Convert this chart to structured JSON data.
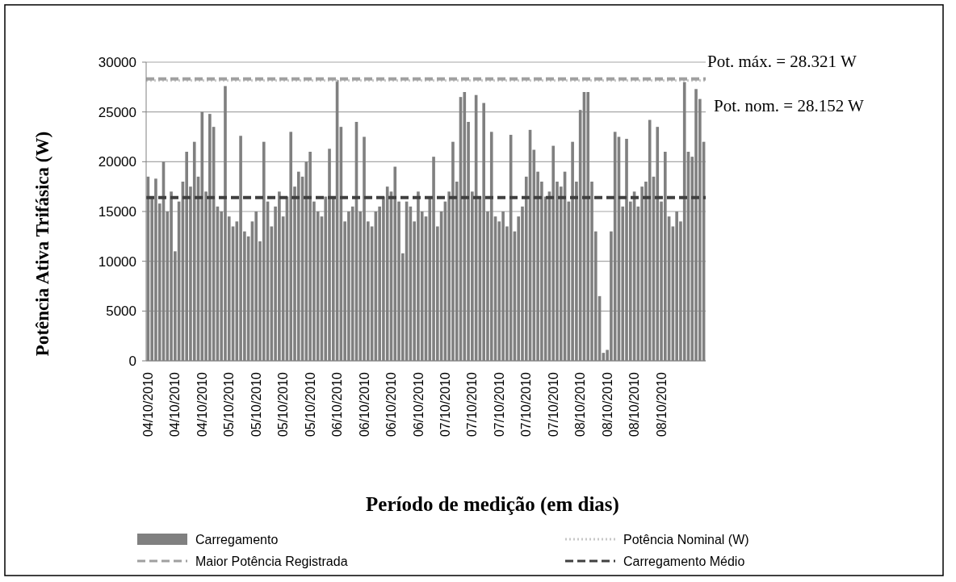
{
  "chart_data": {
    "type": "bar",
    "xlabel": "Período de medição (em dias)",
    "ylabel": "Potência Ativa Trifásica (W)",
    "categories": [
      "04/10/2010",
      null,
      null,
      null,
      null,
      null,
      null,
      "04/10/2010",
      null,
      null,
      null,
      null,
      null,
      null,
      "04/10/2010",
      null,
      null,
      null,
      null,
      null,
      null,
      "05/10/2010",
      null,
      null,
      null,
      null,
      null,
      null,
      "05/10/2010",
      null,
      null,
      null,
      null,
      null,
      null,
      "05/10/2010",
      null,
      null,
      null,
      null,
      null,
      null,
      "05/10/2010",
      null,
      null,
      null,
      null,
      null,
      null,
      "06/10/2010",
      null,
      null,
      null,
      null,
      null,
      null,
      "06/10/2010",
      null,
      null,
      null,
      null,
      null,
      null,
      "06/10/2010",
      null,
      null,
      null,
      null,
      null,
      null,
      "06/10/2010",
      null,
      null,
      null,
      null,
      null,
      null,
      "07/10/2010",
      null,
      null,
      null,
      null,
      null,
      null,
      "07/10/2010",
      null,
      null,
      null,
      null,
      null,
      null,
      "07/10/2010",
      null,
      null,
      null,
      null,
      null,
      null,
      "07/10/2010",
      null,
      null,
      null,
      null,
      null,
      null,
      "07/10/2010",
      null,
      null,
      null,
      null,
      null,
      null,
      "08/10/2010",
      null,
      null,
      null,
      null,
      null,
      null,
      "08/10/2010",
      null,
      null,
      null,
      null,
      null,
      null,
      "08/10/2010",
      null,
      null,
      null,
      null,
      null,
      null,
      "08/10/2010",
      null,
      null,
      null,
      null,
      null,
      null,
      null,
      null,
      null,
      null,
      null
    ],
    "series": [
      {
        "name": "Carregamento",
        "color": "#808080",
        "values": [
          18500,
          16500,
          18300,
          15800,
          20000,
          15000,
          17000,
          11000,
          16000,
          18000,
          21000,
          17500,
          22000,
          18500,
          25000,
          17000,
          24800,
          23500,
          15500,
          15000,
          27600,
          14500,
          13500,
          14000,
          22600,
          13000,
          12500,
          14000,
          15000,
          12000,
          22000,
          16000,
          13500,
          15500,
          17000,
          14500,
          16500,
          23000,
          17500,
          19000,
          18500,
          20000,
          21000,
          16000,
          15000,
          14500,
          16500,
          21300,
          16500,
          28200,
          23500,
          14000,
          15000,
          15500,
          24000,
          15000,
          22500,
          14000,
          13500,
          15000,
          15500,
          16500,
          17500,
          17000,
          19500,
          16000,
          10800,
          16000,
          15500,
          14000,
          17000,
          15000,
          14500,
          16500,
          20500,
          13500,
          15000,
          16000,
          17000,
          22000,
          18000,
          26500,
          27000,
          24000,
          17000,
          26700,
          16500,
          25900,
          15000,
          23000,
          14500,
          14000,
          15000,
          13500,
          22700,
          13000,
          14500,
          15500,
          18500,
          23200,
          21200,
          19000,
          18000,
          16500,
          17000,
          21600,
          18000,
          17500,
          19000,
          16000,
          22000,
          18000,
          25200,
          27000,
          27000,
          18000,
          13000,
          6500,
          800,
          1100,
          13000,
          23000,
          22500,
          15500,
          22300,
          16000,
          17000,
          15500,
          17500,
          18000,
          24200,
          18500,
          23500,
          16000,
          21000,
          14500,
          13500,
          15000,
          14000,
          28000,
          21000,
          20500,
          27300,
          26300,
          22000
        ]
      }
    ],
    "ref_lines": [
      {
        "axis": "y",
        "value": 28152,
        "label": "Potência Nominal (W)",
        "color": "#c8c8c8",
        "line_style": "dotted"
      },
      {
        "axis": "y",
        "value": 28321,
        "label": "Maior Potência Registrada",
        "color": "#a0a0a0",
        "line_style": "dashed"
      },
      {
        "axis": "y",
        "value": 16400,
        "label": "Carregamento Médio",
        "color": "#404040",
        "line_style": "dashed"
      }
    ],
    "annotations": [
      "Pot. máx. = 28.321 W",
      "Pot. nom. = 28.152 W"
    ],
    "ylim": [
      0,
      30000
    ],
    "yticks": [
      0,
      5000,
      10000,
      15000,
      20000,
      25000,
      30000
    ],
    "grid": "y",
    "legend": "bottom"
  }
}
